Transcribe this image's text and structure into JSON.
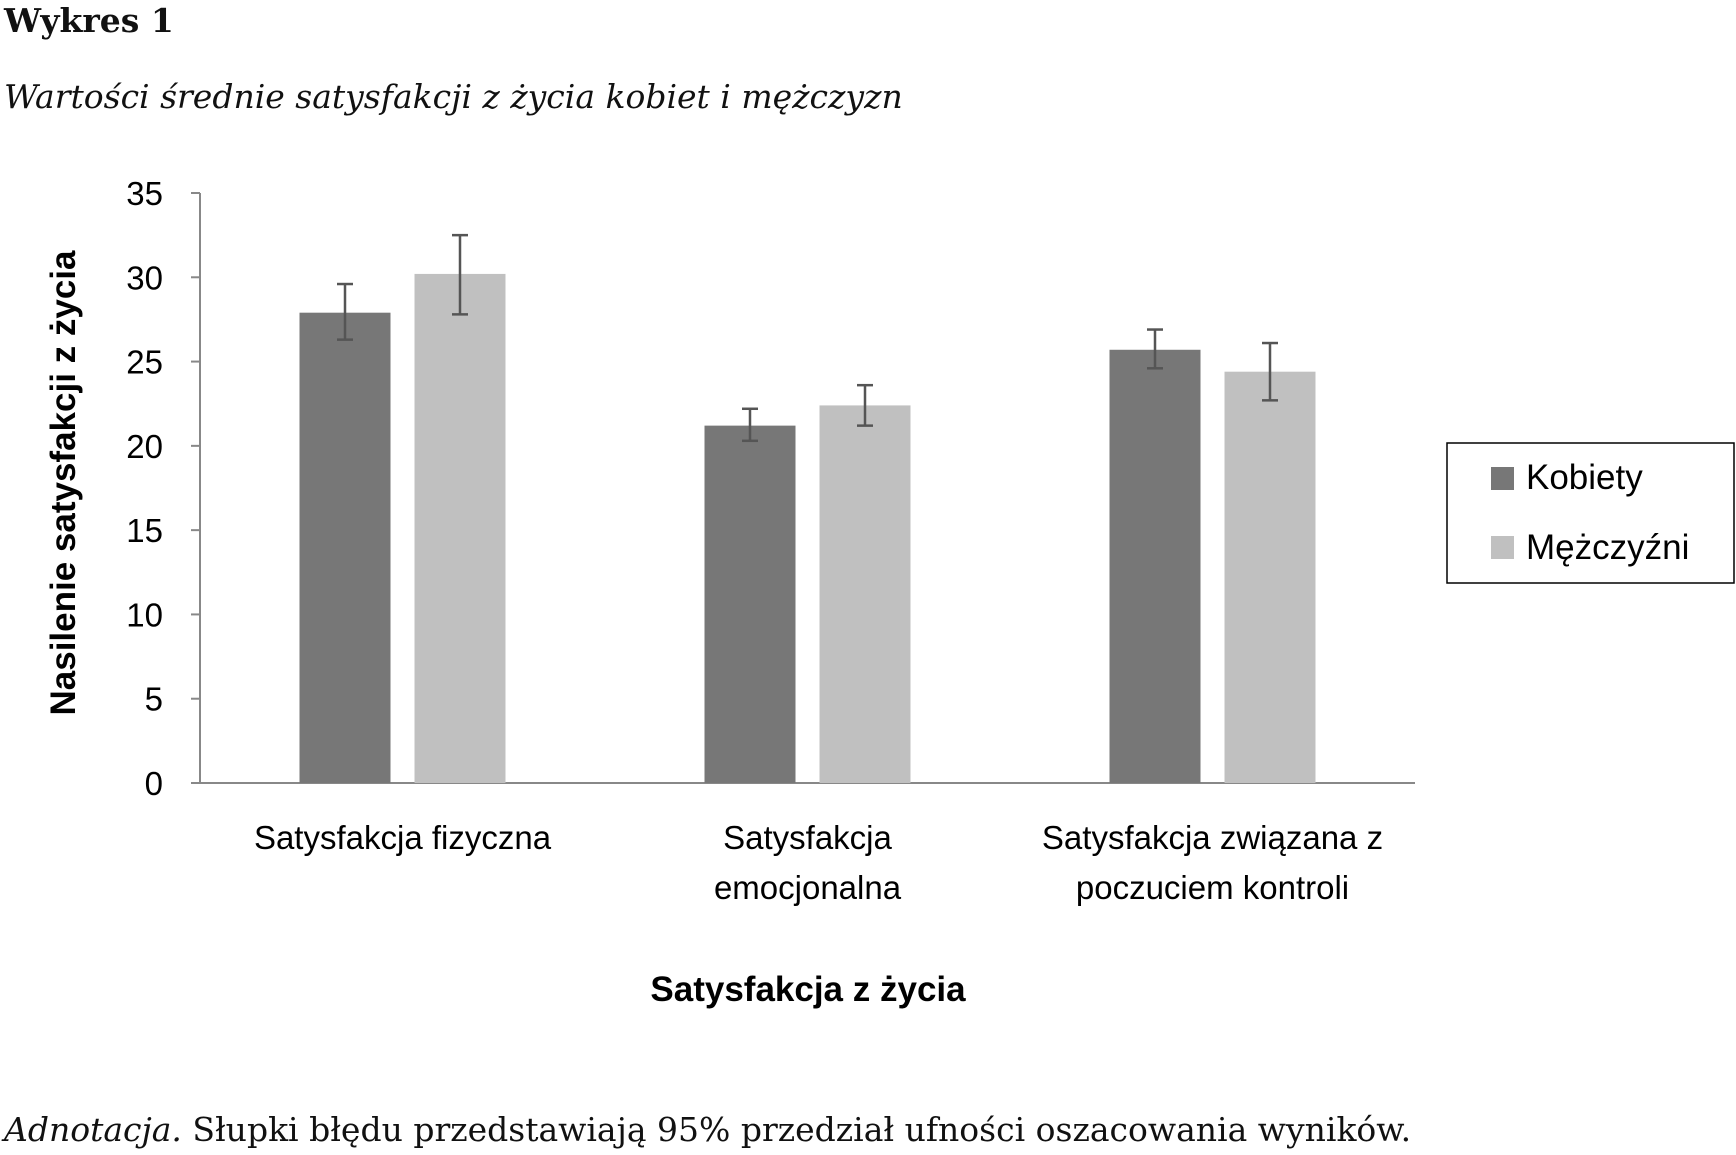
{
  "figure_label": "Wykres 1",
  "figure_title": "Wartości średnie satysfakcji z życia kobiet i mężczyzn",
  "note_label": "Adnotacja.",
  "note_text": " Słupki błędu przedstawiają 95% przedział ufności oszacowania wyników.",
  "chart_data": {
    "type": "bar",
    "title": "Wartości średnie satysfakcji z życia kobiet i mężczyzn",
    "xlabel": "Satysfakcja z życia",
    "ylabel": "Nasilenie satysfakcji z życia",
    "ylim": [
      0,
      35
    ],
    "yticks": [
      "0",
      "5",
      "10",
      "15",
      "20",
      "25",
      "30",
      "35"
    ],
    "grid": false,
    "legend_position": "right",
    "categories": [
      [
        "Satysfakcja fizyczna"
      ],
      [
        "Satysfakcja",
        "emocjonalna"
      ],
      [
        "Satysfakcja związana z",
        "poczuciem kontroli"
      ]
    ],
    "series": [
      {
        "name": "Kobiety",
        "color": "#777777",
        "values": [
          27.9,
          21.2,
          25.7
        ],
        "error_low": [
          26.3,
          20.3,
          24.6
        ],
        "error_high": [
          29.6,
          22.2,
          26.9
        ]
      },
      {
        "name": "Mężczyźni",
        "color": "#c0c0c0",
        "values": [
          30.2,
          22.4,
          24.4
        ],
        "error_low": [
          27.8,
          21.2,
          22.7
        ],
        "error_high": [
          32.5,
          23.6,
          26.1
        ]
      }
    ]
  }
}
